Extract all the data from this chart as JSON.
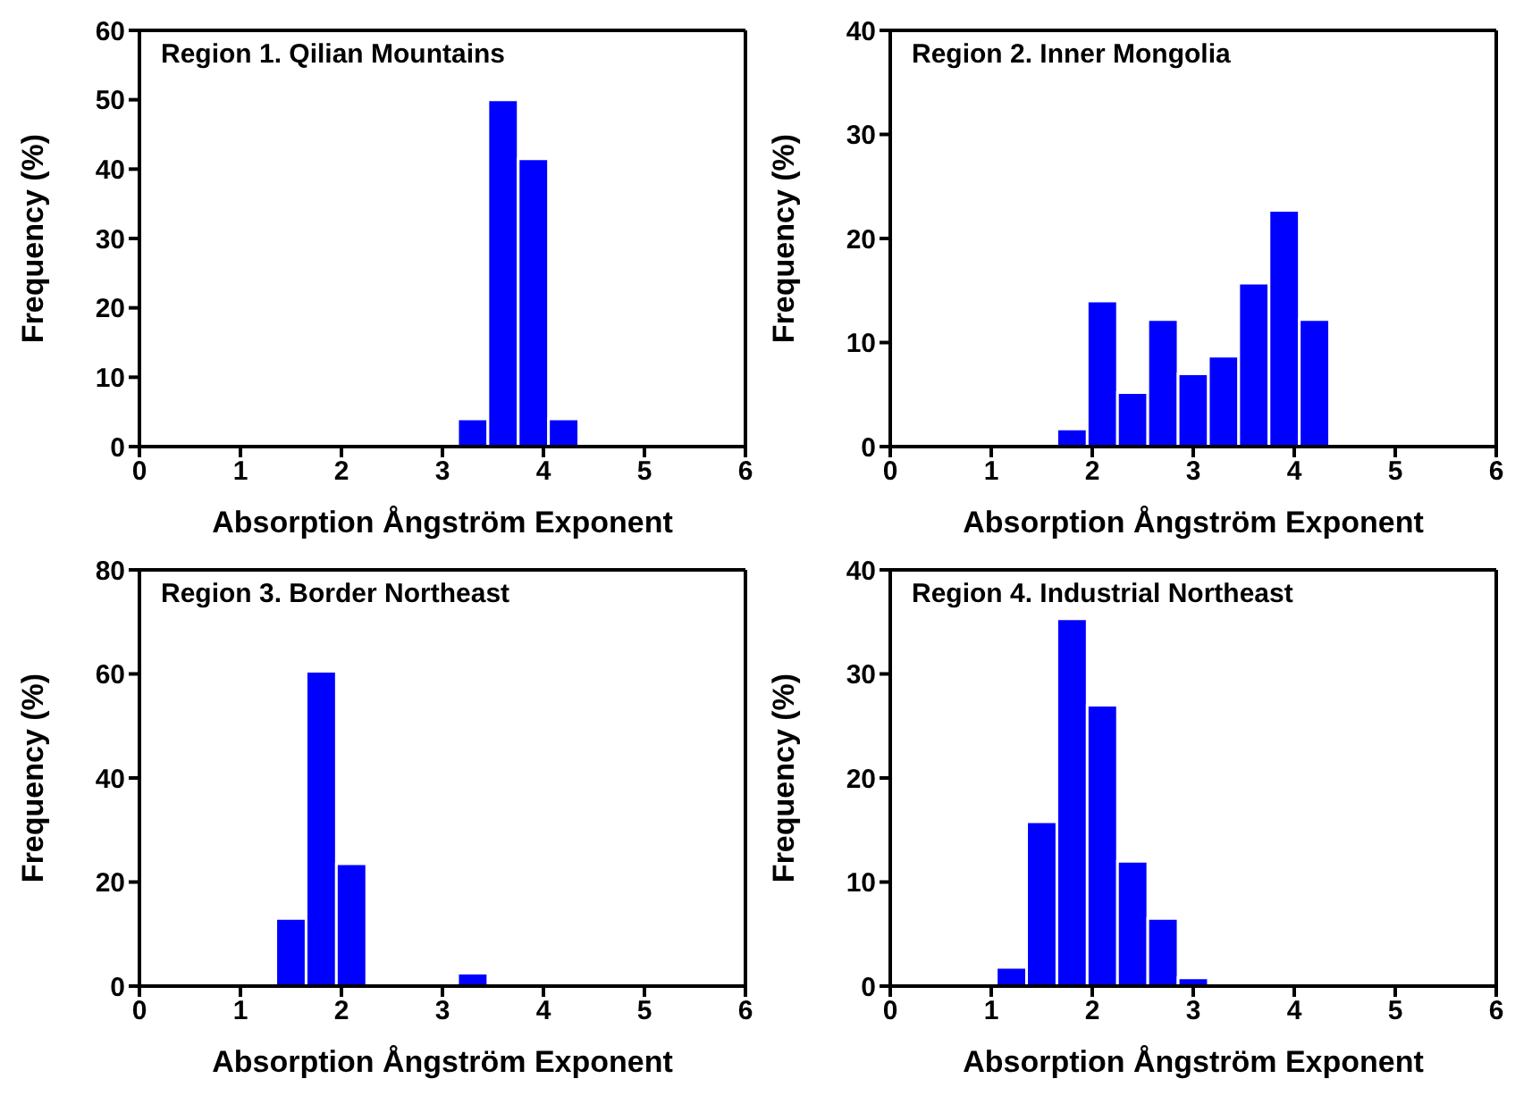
{
  "chart_data": [
    {
      "type": "histogram",
      "title": "Region 1. Qilian Mountains",
      "xlabel": "Absorption Ångström Exponent",
      "ylabel": "Frequency (%)",
      "bins": [
        3.15,
        3.45,
        3.75,
        4.05,
        4.35
      ],
      "values": [
        4,
        50,
        41.5,
        4
      ],
      "color": "#0000ff",
      "xlim": [
        0,
        6
      ],
      "xticks": [
        0,
        1,
        2,
        3,
        4,
        5,
        6
      ],
      "ylim": [
        0,
        60
      ],
      "yticks": [
        0,
        10,
        20,
        30,
        40,
        50,
        60
      ]
    },
    {
      "type": "histogram",
      "title": "Region 2. Inner Mongolia",
      "xlabel": "Absorption Ångström Exponent",
      "ylabel": "Frequency (%)",
      "bins": [
        1.65,
        1.95,
        2.25,
        2.55,
        2.85,
        3.15,
        3.45,
        3.75,
        4.05,
        4.35
      ],
      "values": [
        1.7,
        14,
        5.2,
        12.2,
        7,
        8.7,
        15.7,
        22.7,
        12.2
      ],
      "color": "#0000ff",
      "xlim": [
        0,
        6
      ],
      "xticks": [
        0,
        1,
        2,
        3,
        4,
        5,
        6
      ],
      "ylim": [
        0,
        40
      ],
      "yticks": [
        0,
        10,
        20,
        30,
        40
      ]
    },
    {
      "type": "histogram",
      "title": "Region 3. Border Northeast",
      "xlabel": "Absorption Ångström Exponent",
      "ylabel": "Frequency (%)",
      "bins": [
        1.35,
        1.65,
        1.95,
        2.25,
        2.55,
        2.85,
        3.15,
        3.45
      ],
      "values": [
        13,
        60.5,
        23.5,
        0,
        0,
        0,
        2.5
      ],
      "color": "#0000ff",
      "xlim": [
        0,
        6
      ],
      "xticks": [
        0,
        1,
        2,
        3,
        4,
        5,
        6
      ],
      "ylim": [
        0,
        80
      ],
      "yticks": [
        0,
        20,
        40,
        60,
        80
      ]
    },
    {
      "type": "histogram",
      "title": "Region 4. Industrial Northeast",
      "xlabel": "Absorption Ångström Exponent",
      "ylabel": "Frequency (%)",
      "bins": [
        1.05,
        1.35,
        1.65,
        1.95,
        2.25,
        2.55,
        2.85,
        3.15
      ],
      "values": [
        1.8,
        15.8,
        35.3,
        27,
        12,
        6.5,
        0.8
      ],
      "color": "#0000ff",
      "xlim": [
        0,
        6
      ],
      "xticks": [
        0,
        1,
        2,
        3,
        4,
        5,
        6
      ],
      "ylim": [
        0,
        40
      ],
      "yticks": [
        0,
        10,
        20,
        30,
        40
      ]
    }
  ]
}
